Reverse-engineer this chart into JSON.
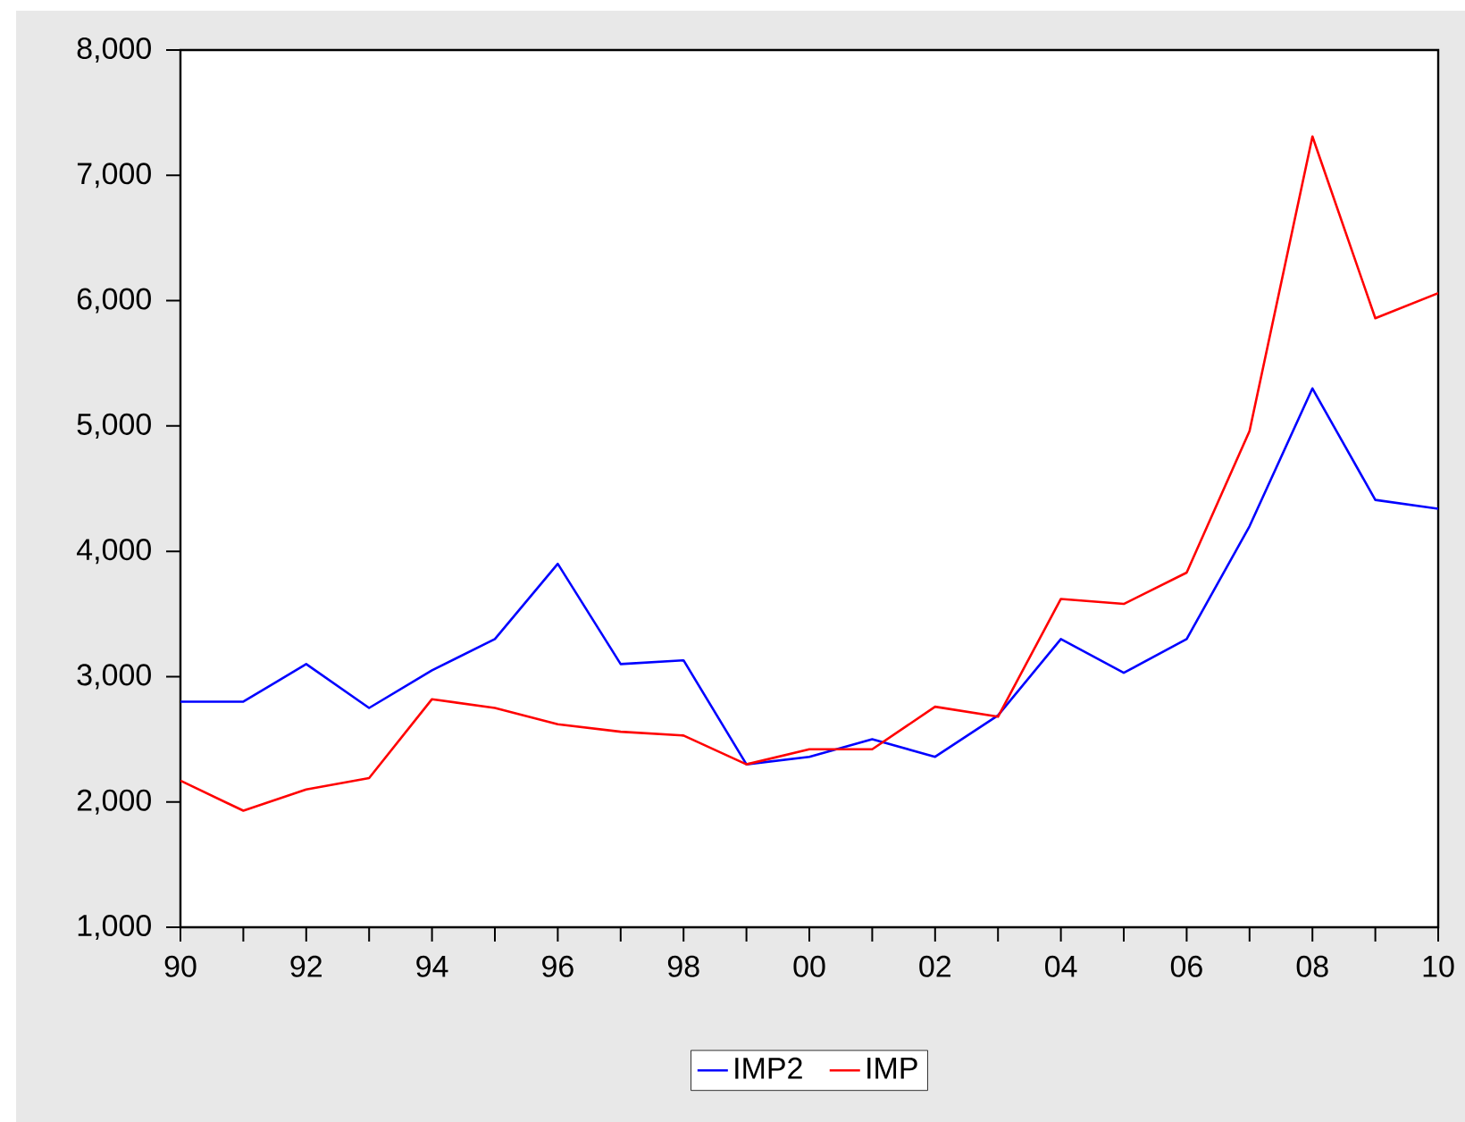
{
  "chart_data": {
    "type": "line",
    "x": [
      1990,
      1991,
      1992,
      1993,
      1994,
      1995,
      1996,
      1997,
      1998,
      1999,
      2000,
      2001,
      2002,
      2003,
      2004,
      2005,
      2006,
      2007,
      2008,
      2009,
      2010
    ],
    "series": [
      {
        "name": "IMP2",
        "color": "#0000ff",
        "values": [
          2800,
          2800,
          3100,
          2750,
          3050,
          3300,
          3900,
          3100,
          3130,
          2300,
          2360,
          2500,
          2360,
          2690,
          3300,
          3030,
          3300,
          4200,
          5300,
          4410,
          4340
        ]
      },
      {
        "name": "IMP",
        "color": "#ff0000",
        "values": [
          2170,
          1930,
          2100,
          2190,
          2820,
          2750,
          2620,
          2560,
          2530,
          2300,
          2420,
          2420,
          2760,
          2680,
          3620,
          3580,
          3830,
          4960,
          7310,
          5860,
          6060
        ]
      }
    ],
    "xlim": [
      1990,
      2010
    ],
    "xticks": [
      {
        "value": 1990,
        "label": "90"
      },
      {
        "value": 1991,
        "label": null
      },
      {
        "value": 1992,
        "label": "92"
      },
      {
        "value": 1993,
        "label": null
      },
      {
        "value": 1994,
        "label": "94"
      },
      {
        "value": 1995,
        "label": null
      },
      {
        "value": 1996,
        "label": "96"
      },
      {
        "value": 1997,
        "label": null
      },
      {
        "value": 1998,
        "label": "98"
      },
      {
        "value": 1999,
        "label": null
      },
      {
        "value": 2000,
        "label": "00"
      },
      {
        "value": 2001,
        "label": null
      },
      {
        "value": 2002,
        "label": "02"
      },
      {
        "value": 2003,
        "label": null
      },
      {
        "value": 2004,
        "label": "04"
      },
      {
        "value": 2005,
        "label": null
      },
      {
        "value": 2006,
        "label": "06"
      },
      {
        "value": 2007,
        "label": null
      },
      {
        "value": 2008,
        "label": "08"
      },
      {
        "value": 2009,
        "label": null
      },
      {
        "value": 2010,
        "label": "10"
      }
    ],
    "ylim": [
      1000,
      8000
    ],
    "yticks": [
      {
        "value": 1000,
        "label": "1,000"
      },
      {
        "value": 2000,
        "label": "2,000"
      },
      {
        "value": 3000,
        "label": "3,000"
      },
      {
        "value": 4000,
        "label": "4,000"
      },
      {
        "value": 5000,
        "label": "5,000"
      },
      {
        "value": 6000,
        "label": "6,000"
      },
      {
        "value": 7000,
        "label": "7,000"
      },
      {
        "value": 8000,
        "label": "8,000"
      }
    ],
    "legend": "bottom",
    "marker": "none",
    "line_style": "solid"
  }
}
